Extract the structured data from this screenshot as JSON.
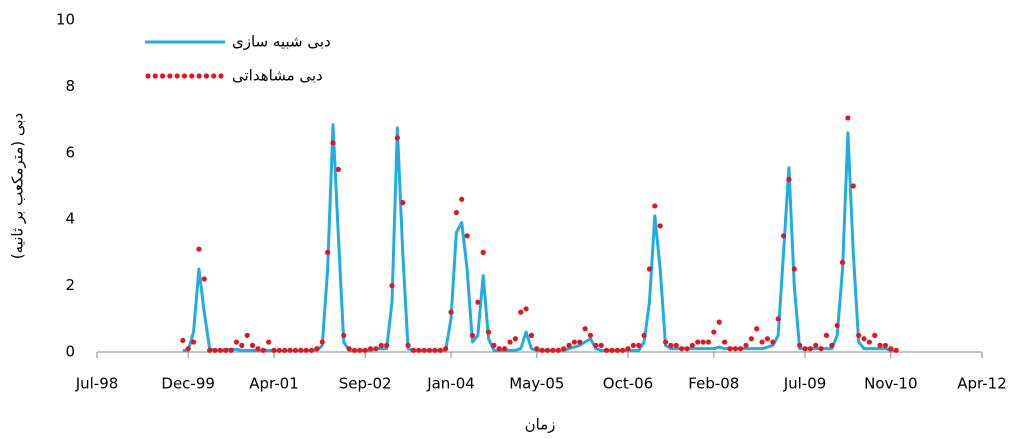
{
  "chart_data": {
    "type": "line",
    "x_label": "زمان",
    "y_label": "دبی (مترمکعب بر ثانیه)",
    "x": [
      "1999-11",
      "1999-12",
      "2000-01",
      "2000-02",
      "2000-03",
      "2000-04",
      "2000-05",
      "2000-06",
      "2000-07",
      "2000-08",
      "2000-09",
      "2000-10",
      "2000-11",
      "2000-12",
      "2001-01",
      "2001-02",
      "2001-03",
      "2001-04",
      "2001-05",
      "2001-06",
      "2001-07",
      "2001-08",
      "2001-09",
      "2001-10",
      "2001-11",
      "2001-12",
      "2002-01",
      "2002-02",
      "2002-03",
      "2002-04",
      "2002-05",
      "2002-06",
      "2002-07",
      "2002-08",
      "2002-09",
      "2002-10",
      "2002-11",
      "2002-12",
      "2003-01",
      "2003-02",
      "2003-03",
      "2003-04",
      "2003-05",
      "2003-06",
      "2003-07",
      "2003-08",
      "2003-09",
      "2003-10",
      "2003-11",
      "2003-12",
      "2004-01",
      "2004-02",
      "2004-03",
      "2004-04",
      "2004-05",
      "2004-06",
      "2004-07",
      "2004-08",
      "2004-09",
      "2004-10",
      "2004-11",
      "2004-12",
      "2005-01",
      "2005-02",
      "2005-03",
      "2005-04",
      "2005-05",
      "2005-06",
      "2005-07",
      "2005-08",
      "2005-09",
      "2005-10",
      "2005-11",
      "2005-12",
      "2006-01",
      "2006-02",
      "2006-03",
      "2006-04",
      "2006-05",
      "2006-06",
      "2006-07",
      "2006-08",
      "2006-09",
      "2006-10",
      "2006-11",
      "2006-12",
      "2007-01",
      "2007-02",
      "2007-03",
      "2007-04",
      "2007-05",
      "2007-06",
      "2007-07",
      "2007-08",
      "2007-09",
      "2007-10",
      "2007-11",
      "2007-12",
      "2008-01",
      "2008-02",
      "2008-03",
      "2008-04",
      "2008-05",
      "2008-06",
      "2008-07",
      "2008-08",
      "2008-09",
      "2008-10",
      "2008-11",
      "2008-12",
      "2009-01",
      "2009-02",
      "2009-03",
      "2009-04",
      "2009-05",
      "2009-06",
      "2009-07",
      "2009-08",
      "2009-09",
      "2009-10",
      "2009-11",
      "2009-12",
      "2010-01",
      "2010-02",
      "2010-03",
      "2010-04",
      "2010-05",
      "2010-06",
      "2010-07",
      "2010-08",
      "2010-09",
      "2010-10",
      "2010-11",
      "2010-12"
    ],
    "series": [
      {
        "name": "دبی شبیه سازی",
        "color": "#1fade4",
        "style": "line",
        "values": [
          0.05,
          0.05,
          0.6,
          2.5,
          1.2,
          0.1,
          0.05,
          0.05,
          0.08,
          0.08,
          0.08,
          0.05,
          0.05,
          0.05,
          0.05,
          0.05,
          0.05,
          0.05,
          0.03,
          0.03,
          0.03,
          0.03,
          0.03,
          0.03,
          0.05,
          0.05,
          0.2,
          2.5,
          6.85,
          3.5,
          0.3,
          0.05,
          0.05,
          0.05,
          0.05,
          0.05,
          0.1,
          0.1,
          0.1,
          1.5,
          6.75,
          3.0,
          0.1,
          0.05,
          0.05,
          0.05,
          0.05,
          0.05,
          0.05,
          0.05,
          1.0,
          3.6,
          3.9,
          2.5,
          0.3,
          0.5,
          2.3,
          0.4,
          0.05,
          0.05,
          0.05,
          0.05,
          0.05,
          0.1,
          0.6,
          0.1,
          0.05,
          0.05,
          0.05,
          0.05,
          0.05,
          0.05,
          0.1,
          0.15,
          0.2,
          0.3,
          0.4,
          0.1,
          0.05,
          0.05,
          0.05,
          0.05,
          0.05,
          0.05,
          0.05,
          0.05,
          0.3,
          1.5,
          4.1,
          2.5,
          0.2,
          0.1,
          0.1,
          0.1,
          0.1,
          0.1,
          0.1,
          0.1,
          0.1,
          0.1,
          0.15,
          0.1,
          0.1,
          0.1,
          0.1,
          0.1,
          0.1,
          0.1,
          0.1,
          0.15,
          0.2,
          0.5,
          3.0,
          5.55,
          2.0,
          0.1,
          0.1,
          0.1,
          0.1,
          0.1,
          0.1,
          0.1,
          0.5,
          2.5,
          6.6,
          3.0,
          0.3,
          0.1,
          0.1,
          0.1,
          0.1,
          0.1,
          0.05,
          0.05
        ]
      },
      {
        "name": "دبی مشاهداتی",
        "color": "#e8141c",
        "style": "dots",
        "values": [
          0.35,
          0.1,
          0.3,
          3.1,
          2.2,
          0.05,
          0.05,
          0.05,
          0.05,
          0.05,
          0.3,
          0.2,
          0.5,
          0.2,
          0.1,
          0.05,
          0.3,
          0.05,
          0.05,
          0.05,
          0.05,
          0.05,
          0.05,
          0.05,
          0.05,
          0.1,
          0.3,
          3.0,
          6.3,
          5.5,
          0.5,
          0.1,
          0.05,
          0.05,
          0.05,
          0.1,
          0.1,
          0.2,
          0.2,
          2.0,
          6.45,
          4.5,
          0.2,
          0.05,
          0.05,
          0.05,
          0.05,
          0.05,
          0.05,
          0.1,
          1.2,
          4.2,
          4.6,
          3.5,
          0.5,
          1.5,
          3.0,
          0.6,
          0.2,
          0.1,
          0.1,
          0.3,
          0.4,
          1.2,
          1.3,
          0.5,
          0.1,
          0.05,
          0.05,
          0.05,
          0.05,
          0.1,
          0.2,
          0.3,
          0.3,
          0.7,
          0.5,
          0.2,
          0.2,
          0.05,
          0.05,
          0.05,
          0.05,
          0.1,
          0.2,
          0.2,
          0.5,
          2.5,
          4.4,
          3.8,
          0.3,
          0.2,
          0.2,
          0.1,
          0.1,
          0.2,
          0.3,
          0.3,
          0.3,
          0.6,
          0.9,
          0.3,
          0.1,
          0.1,
          0.1,
          0.2,
          0.4,
          0.7,
          0.3,
          0.4,
          0.3,
          1.0,
          3.5,
          5.2,
          2.5,
          0.2,
          0.1,
          0.1,
          0.2,
          0.1,
          0.5,
          0.2,
          0.8,
          2.7,
          7.05,
          5.0,
          0.5,
          0.4,
          0.3,
          0.5,
          0.2,
          0.2,
          0.1,
          0.05
        ]
      }
    ],
    "xlim": [
      "1998-07",
      "2012-04"
    ],
    "xticks": [
      {
        "value": "1998-07",
        "label": "Jul-98"
      },
      {
        "value": "1999-12",
        "label": "Dec-99"
      },
      {
        "value": "2001-04",
        "label": "Apr-01"
      },
      {
        "value": "2002-09",
        "label": "Sep-02"
      },
      {
        "value": "2004-01",
        "label": "Jan-04"
      },
      {
        "value": "2005-05",
        "label": "May-05"
      },
      {
        "value": "2006-10",
        "label": "Oct-06"
      },
      {
        "value": "2008-02",
        "label": "Feb-08"
      },
      {
        "value": "2009-07",
        "label": "Jul-09"
      },
      {
        "value": "2010-11",
        "label": "Nov-10"
      },
      {
        "value": "2012-04",
        "label": "Apr-12"
      }
    ],
    "ylim": [
      0,
      10
    ],
    "yticks": [
      0,
      2,
      4,
      6,
      8,
      10
    ],
    "grid": false,
    "legend": "top-left"
  }
}
